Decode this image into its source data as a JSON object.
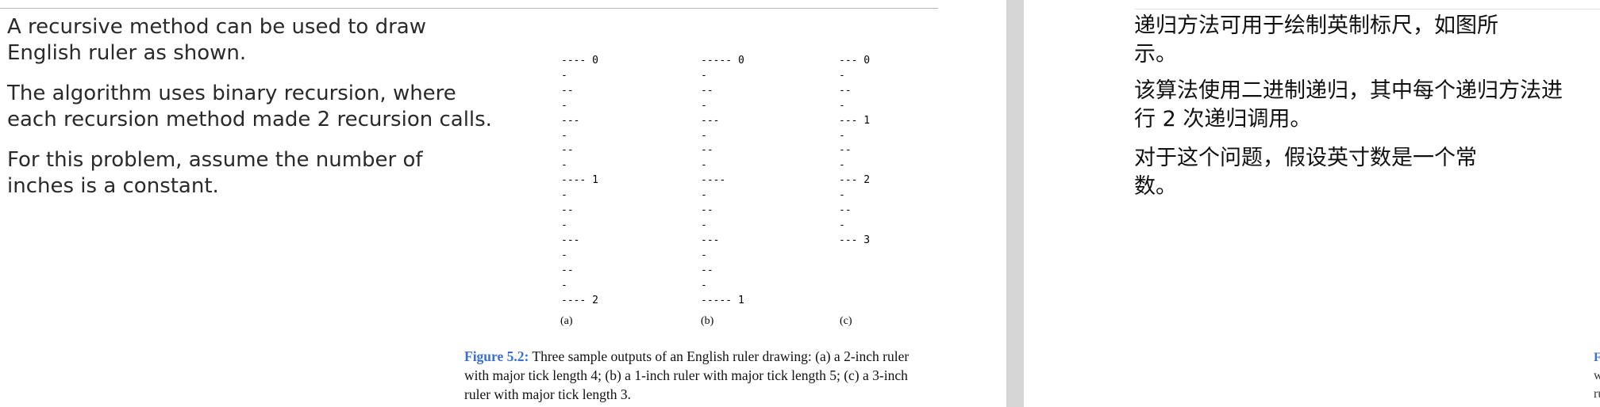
{
  "left_slide": {
    "paragraphs": [
      [
        "A recursive method can be used to draw",
        "English ruler as shown."
      ],
      [
        "The algorithm uses binary recursion, where",
        "each recursion method made 2 recursion calls."
      ],
      [
        "For this problem, assume the number of",
        "inches is a constant."
      ]
    ],
    "figure": {
      "ruler_a": [
        "---- 0",
        "-",
        "--",
        "-",
        "---",
        "-",
        "--",
        "-",
        "---- 1",
        "-",
        "--",
        "-",
        "---",
        "-",
        "--",
        "-",
        "---- 2"
      ],
      "ruler_b": [
        "----- 0",
        "-",
        "--",
        "-",
        "---",
        "-",
        "--",
        "-",
        "----",
        "-",
        "--",
        "-",
        "---",
        "-",
        "--",
        "-",
        "----- 1"
      ],
      "ruler_c": [
        "--- 0",
        "-",
        "--",
        "-",
        "--- 1",
        "-",
        "--",
        "-",
        "--- 2",
        "-",
        "--",
        "-",
        "--- 3"
      ],
      "label_a": "(a)",
      "label_b": "(b)",
      "label_c": "(c)",
      "caption_label": "Figure 5.2:",
      "caption_lines": [
        "Three sample outputs of an English ruler drawing: (a) a 2-inch ruler",
        "with major tick length 4; (b) a 1-inch ruler with major tick length 5; (c) a 3-inch",
        "ruler with major tick length 3."
      ]
    }
  },
  "right_slide": {
    "paragraphs": [
      [
        "递归方法可用于绘制英制标尺，如图所",
        "示。"
      ],
      [
        "该算法使用二进制递归，其中每个递归方法进",
        "行 2 次递归调用。"
      ],
      [
        "对于这个问题，假设英寸数是一个常",
        "数。"
      ]
    ],
    "caption_fragment": {
      "label": "F",
      "lines": [
        "w",
        "ru"
      ]
    }
  }
}
